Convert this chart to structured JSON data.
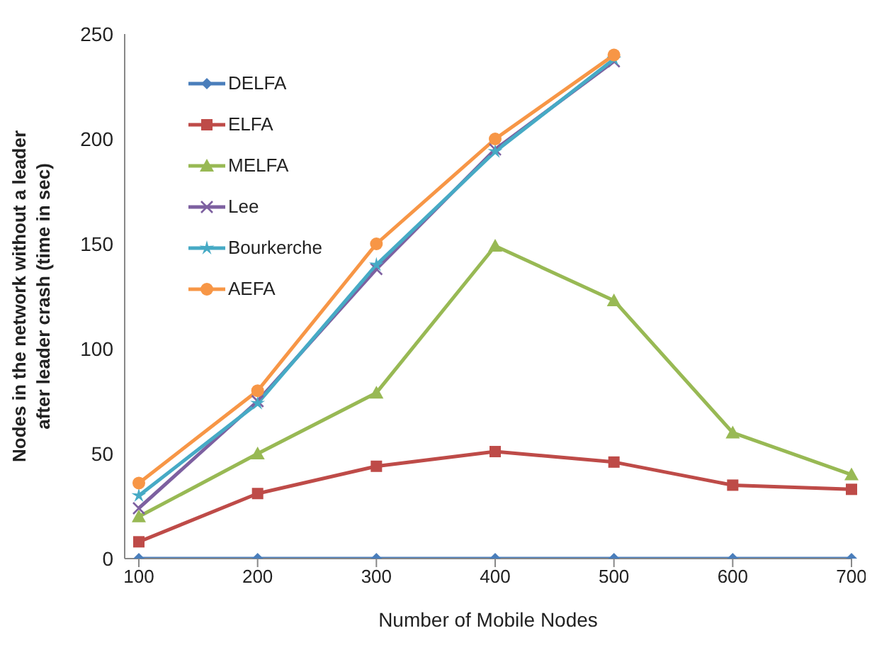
{
  "chart_data": {
    "type": "line",
    "xlabel": "Number of Mobile Nodes",
    "ylabel": "Nodes in the network without a leader\nafter leader crash (time in sec)",
    "categories": [
      "100",
      "200",
      "300",
      "400",
      "500",
      "600",
      "700"
    ],
    "ylim": [
      0,
      250
    ],
    "yticks": [
      0,
      50,
      100,
      150,
      200,
      250
    ],
    "grid": false,
    "legend": "top left",
    "series": [
      {
        "name": "DELFA",
        "color": "#4a7ebb",
        "marker": "diamond",
        "values": [
          0,
          0,
          0,
          0,
          0,
          0,
          0
        ]
      },
      {
        "name": "ELFA",
        "color": "#be4b48",
        "marker": "square",
        "values": [
          8,
          31,
          44,
          51,
          46,
          35,
          33
        ]
      },
      {
        "name": "MELFA",
        "color": "#98b954",
        "marker": "triangle",
        "values": [
          20,
          50,
          79,
          149,
          123,
          60,
          40
        ]
      },
      {
        "name": "Lee",
        "color": "#7d60a0",
        "marker": "cross",
        "values": [
          24,
          75,
          138,
          195,
          237,
          null,
          null
        ]
      },
      {
        "name": "Bourkerche",
        "color": "#46aac5",
        "marker": "star",
        "values": [
          30,
          74,
          140,
          194,
          238,
          null,
          null
        ]
      },
      {
        "name": "AEFA",
        "color": "#f79646",
        "marker": "circle",
        "values": [
          36,
          80,
          150,
          200,
          240,
          null,
          null
        ]
      }
    ]
  }
}
